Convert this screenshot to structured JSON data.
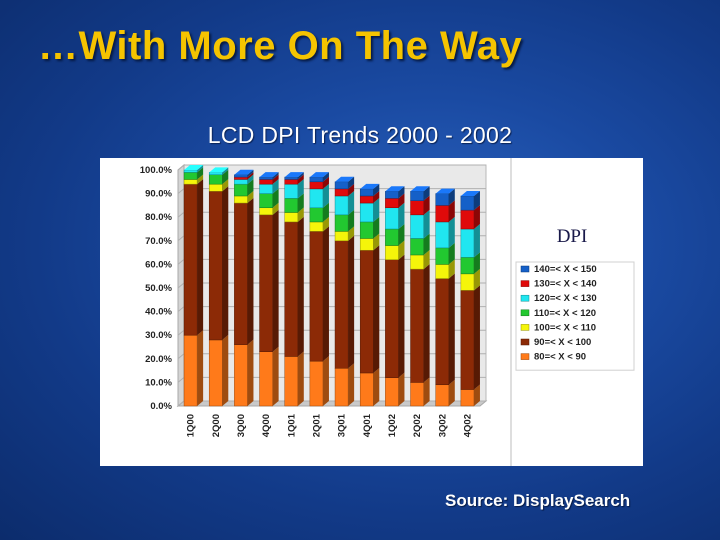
{
  "slide": {
    "title": "…With More On The Way",
    "source": "Source: DisplaySearch"
  },
  "colors": {
    "background": "#1a4aa2",
    "title": "#f5c400"
  },
  "chart_data": {
    "type": "bar",
    "stacked": true,
    "title": "LCD DPI Trends 2000 - 2002",
    "annotation": "DPI",
    "xlabel": "",
    "ylabel": "",
    "ylim": [
      0,
      100
    ],
    "yticks": [
      "0.0%",
      "10.0%",
      "20.0%",
      "30.0%",
      "40.0%",
      "50.0%",
      "60.0%",
      "70.0%",
      "80.0%",
      "90.0%",
      "100.0%"
    ],
    "legend_position": "right",
    "categories": [
      "1Q00",
      "2Q00",
      "3Q00",
      "4Q00",
      "1Q01",
      "2Q01",
      "3Q01",
      "4Q01",
      "1Q02",
      "2Q02",
      "3Q02",
      "4Q02"
    ],
    "series": [
      {
        "name": "80=< X < 90",
        "color": "#ff7a1a",
        "values": [
          30,
          28,
          26,
          23,
          21,
          19,
          16,
          14,
          12,
          10,
          9,
          7
        ]
      },
      {
        "name": "90=< X < 100",
        "color": "#8c2a06",
        "values": [
          64,
          63,
          60,
          58,
          57,
          55,
          54,
          52,
          50,
          48,
          45,
          42
        ]
      },
      {
        "name": "100=< X < 110",
        "color": "#f5f50a",
        "values": [
          2,
          3,
          3,
          3,
          4,
          4,
          4,
          5,
          6,
          6,
          6,
          7
        ]
      },
      {
        "name": "110=< X < 120",
        "color": "#22c830",
        "values": [
          3,
          4,
          5,
          6,
          6,
          6,
          7,
          7,
          7,
          7,
          7,
          7
        ]
      },
      {
        "name": "120=< X < 130",
        "color": "#20e6f0",
        "values": [
          1,
          1,
          2,
          4,
          6,
          8,
          8,
          8,
          9,
          10,
          11,
          12
        ]
      },
      {
        "name": "130=< X < 140",
        "color": "#e00a0a",
        "values": [
          0,
          0,
          1,
          2,
          2,
          3,
          3,
          3,
          4,
          6,
          7,
          8
        ]
      },
      {
        "name": "140=< X < 150",
        "color": "#1560c8",
        "values": [
          0,
          0,
          1,
          1,
          1,
          2,
          3,
          3,
          3,
          4,
          5,
          6
        ]
      }
    ]
  }
}
